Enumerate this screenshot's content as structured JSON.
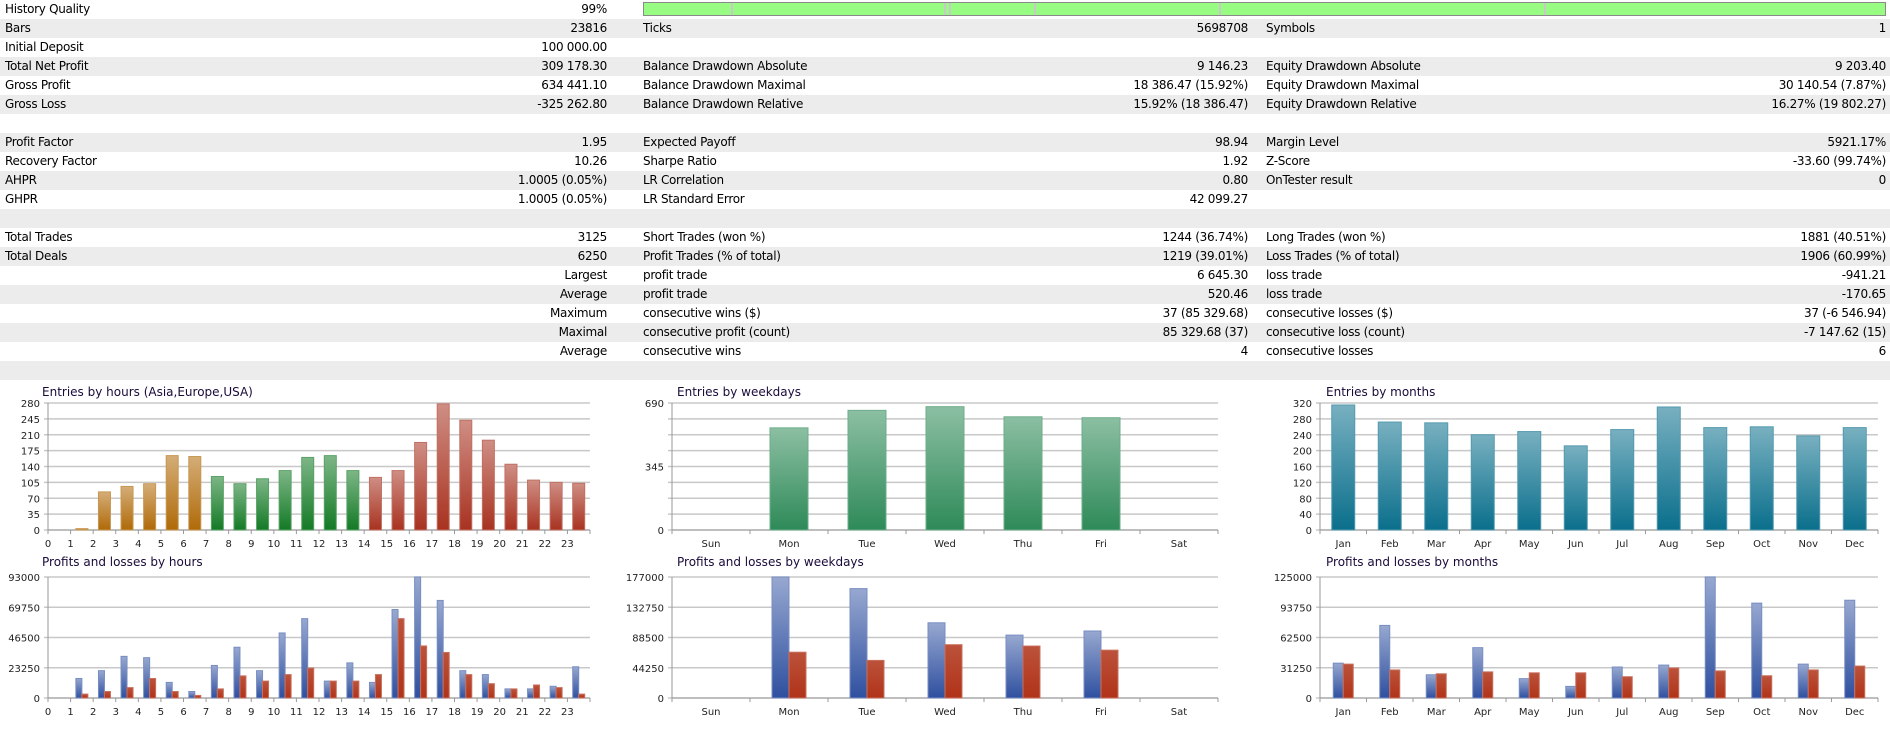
{
  "history_quality": {
    "label": "History Quality",
    "value": "99%",
    "fill_percent": 99,
    "bar_color": "#98fb82"
  },
  "rows": [
    [
      {
        "label": "Bars",
        "value": "23816"
      },
      {
        "label": "Ticks",
        "value": "5698708"
      },
      {
        "label": "Symbols",
        "value": "1"
      }
    ],
    [
      {
        "label": "Initial Deposit",
        "value": "100 000.00"
      },
      {
        "label": "",
        "value": ""
      },
      {
        "label": "",
        "value": ""
      }
    ],
    [
      {
        "label": "Total Net Profit",
        "value": "309 178.30"
      },
      {
        "label": "Balance Drawdown Absolute",
        "value": "9 146.23"
      },
      {
        "label": "Equity Drawdown Absolute",
        "value": "9 203.40"
      }
    ],
    [
      {
        "label": "Gross Profit",
        "value": "634 441.10"
      },
      {
        "label": "Balance Drawdown Maximal",
        "value": "18 386.47 (15.92%)"
      },
      {
        "label": "Equity Drawdown Maximal",
        "value": "30 140.54 (7.87%)"
      }
    ],
    [
      {
        "label": "Gross Loss",
        "value": "-325 262.80"
      },
      {
        "label": "Balance Drawdown Relative",
        "value": "15.92% (18 386.47)"
      },
      {
        "label": "Equity Drawdown Relative",
        "value": "16.27% (19 802.27)"
      }
    ],
    [
      {
        "label": "",
        "value": ""
      },
      {
        "label": "",
        "value": ""
      },
      {
        "label": "",
        "value": ""
      }
    ],
    [
      {
        "label": "Profit Factor",
        "value": "1.95"
      },
      {
        "label": "Expected Payoff",
        "value": "98.94"
      },
      {
        "label": "Margin Level",
        "value": "5921.17%"
      }
    ],
    [
      {
        "label": "Recovery Factor",
        "value": "10.26"
      },
      {
        "label": "Sharpe Ratio",
        "value": "1.92"
      },
      {
        "label": "Z-Score",
        "value": "-33.60 (99.74%)"
      }
    ],
    [
      {
        "label": "AHPR",
        "value": "1.0005 (0.05%)"
      },
      {
        "label": "LR Correlation",
        "value": "0.80"
      },
      {
        "label": "OnTester result",
        "value": "0"
      }
    ],
    [
      {
        "label": "GHPR",
        "value": "1.0005 (0.05%)"
      },
      {
        "label": "LR Standard Error",
        "value": "42 099.27"
      },
      {
        "label": "",
        "value": ""
      }
    ],
    [
      {
        "label": "",
        "value": ""
      },
      {
        "label": "",
        "value": ""
      },
      {
        "label": "",
        "value": ""
      }
    ],
    [
      {
        "label": "Total Trades",
        "value": "3125"
      },
      {
        "label": "Short Trades (won %)",
        "value": "1244 (36.74%)"
      },
      {
        "label": "Long Trades (won %)",
        "value": "1881 (40.51%)"
      }
    ],
    [
      {
        "label": "Total Deals",
        "value": "6250"
      },
      {
        "label": "Profit Trades (% of total)",
        "value": "1219 (39.01%)"
      },
      {
        "label": "Loss Trades (% of total)",
        "value": "1906 (60.99%)"
      }
    ],
    [
      {
        "label": "",
        "value": "Largest"
      },
      {
        "label": "profit trade",
        "value": "6 645.30"
      },
      {
        "label": "loss trade",
        "value": "-941.21"
      }
    ],
    [
      {
        "label": "",
        "value": "Average"
      },
      {
        "label": "profit trade",
        "value": "520.46"
      },
      {
        "label": "loss trade",
        "value": "-170.65"
      }
    ],
    [
      {
        "label": "",
        "value": "Maximum"
      },
      {
        "label": "consecutive wins ($)",
        "value": "37 (85 329.68)"
      },
      {
        "label": "consecutive losses ($)",
        "value": "37 (-6 546.94)"
      }
    ],
    [
      {
        "label": "",
        "value": "Maximal"
      },
      {
        "label": "consecutive profit (count)",
        "value": "85 329.68 (37)"
      },
      {
        "label": "consecutive loss (count)",
        "value": "-7 147.62 (15)"
      }
    ],
    [
      {
        "label": "",
        "value": "Average"
      },
      {
        "label": "consecutive wins",
        "value": "4"
      },
      {
        "label": "consecutive losses",
        "value": "6"
      }
    ]
  ],
  "chart_data": [
    {
      "type": "bar",
      "title": "Entries by hours (Asia,Europe,USA)",
      "categories": [
        "0",
        "1",
        "2",
        "3",
        "4",
        "5",
        "6",
        "7",
        "8",
        "9",
        "10",
        "11",
        "12",
        "13",
        "14",
        "15",
        "16",
        "17",
        "18",
        "19",
        "20",
        "21",
        "22",
        "23"
      ],
      "values": [
        0,
        3,
        84,
        96,
        102,
        164,
        162,
        118,
        102,
        113,
        131,
        160,
        164,
        131,
        116,
        131,
        193,
        278,
        242,
        198,
        145,
        110,
        105,
        103
      ],
      "yticks": [
        0,
        35,
        70,
        105,
        140,
        175,
        210,
        245,
        280
      ],
      "ylim": [
        0,
        280
      ],
      "colors": {
        "asia": "#b06a08",
        "europe": "#137a25",
        "usa": "#a83220"
      }
    },
    {
      "type": "bar",
      "title": "Entries by weekdays",
      "categories": [
        "Sun",
        "Mon",
        "Tue",
        "Wed",
        "Thu",
        "Fri",
        "Sat"
      ],
      "values": [
        0,
        555,
        650,
        670,
        615,
        610,
        0
      ],
      "yticks": [
        0,
        345,
        690
      ],
      "ylim": [
        0,
        690
      ],
      "colors": {
        "bar": "#2e8a58"
      }
    },
    {
      "type": "bar",
      "title": "Entries by months",
      "categories": [
        "Jan",
        "Feb",
        "Mar",
        "Apr",
        "May",
        "Jun",
        "Jul",
        "Aug",
        "Sep",
        "Oct",
        "Nov",
        "Dec"
      ],
      "values": [
        315,
        272,
        270,
        240,
        248,
        212,
        253,
        310,
        258,
        260,
        237,
        258
      ],
      "yticks": [
        0,
        40,
        80,
        120,
        160,
        200,
        240,
        280,
        320
      ],
      "ylim": [
        0,
        320
      ],
      "colors": {
        "bar": "#0a6f8c"
      }
    },
    {
      "type": "bar",
      "title": "Profits and losses by hours",
      "categories": [
        "0",
        "1",
        "2",
        "3",
        "4",
        "5",
        "6",
        "7",
        "8",
        "9",
        "10",
        "11",
        "12",
        "13",
        "14",
        "15",
        "16",
        "17",
        "18",
        "19",
        "20",
        "21",
        "22",
        "23"
      ],
      "series": [
        {
          "values": [
            0,
            15000,
            21000,
            32000,
            31000,
            12000,
            5000,
            25000,
            39000,
            21000,
            50000,
            61000,
            13000,
            27000,
            12000,
            68000,
            93000,
            75000,
            21000,
            18000,
            7000,
            7000,
            9000,
            24000
          ]
        },
        {
          "values": [
            0,
            3000,
            5000,
            8000,
            15000,
            5000,
            2000,
            7000,
            17000,
            13000,
            18000,
            23000,
            13000,
            13000,
            18000,
            61000,
            40000,
            35000,
            18000,
            11000,
            7000,
            10000,
            8000,
            3000
          ]
        }
      ],
      "yticks": [
        0,
        23250,
        46500,
        69750,
        93000
      ],
      "ylim": [
        0,
        93000
      ],
      "colors": {
        "profit": "#2f50a0",
        "loss": "#b03318"
      }
    },
    {
      "type": "bar",
      "title": "Profits and losses by weekdays",
      "categories": [
        "Sun",
        "Mon",
        "Tue",
        "Wed",
        "Thu",
        "Fri",
        "Sat"
      ],
      "series": [
        {
          "values": [
            0,
            177000,
            160000,
            110000,
            92000,
            98000,
            0
          ]
        },
        {
          "values": [
            0,
            67000,
            55000,
            78000,
            76000,
            70000,
            0
          ]
        }
      ],
      "yticks": [
        0,
        44250,
        88500,
        132750,
        177000
      ],
      "ylim": [
        0,
        177000
      ],
      "colors": {
        "profit": "#2f50a0",
        "loss": "#b03318"
      }
    },
    {
      "type": "bar",
      "title": "Profits and losses by months",
      "categories": [
        "Jan",
        "Feb",
        "Mar",
        "Apr",
        "May",
        "Jun",
        "Jul",
        "Aug",
        "Sep",
        "Oct",
        "Nov",
        "Dec"
      ],
      "series": [
        {
          "values": [
            36000,
            75000,
            24000,
            52000,
            20000,
            12000,
            32000,
            34000,
            125000,
            98000,
            35000,
            101000
          ]
        },
        {
          "values": [
            35000,
            29000,
            25000,
            27000,
            26000,
            26000,
            22000,
            31000,
            28000,
            23000,
            29000,
            33000
          ]
        }
      ],
      "yticks": [
        0,
        31250,
        62500,
        93750,
        125000
      ],
      "ylim": [
        0,
        125000
      ],
      "colors": {
        "profit": "#2f50a0",
        "loss": "#b03318"
      }
    }
  ]
}
